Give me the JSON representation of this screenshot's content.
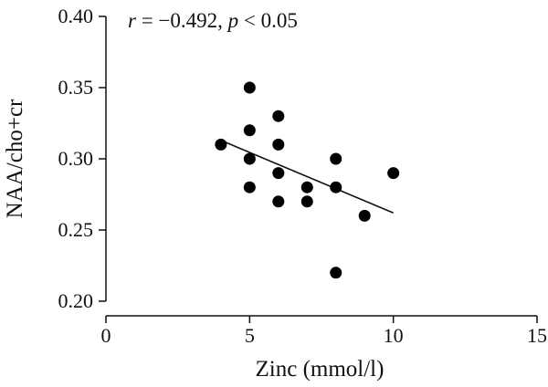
{
  "chart_data": {
    "type": "scatter",
    "xlabel": "Zinc (mmol/l)",
    "ylabel": "NAA/cho+cr",
    "xlim": [
      0,
      15
    ],
    "ylim": [
      0.2,
      0.4
    ],
    "xticks": [
      "0",
      "5",
      "10",
      "15"
    ],
    "yticks": [
      "0.40",
      "0.35",
      "0.30",
      "0.25",
      "0.20"
    ],
    "annotation": {
      "r_symbol": "r",
      "r_value": " = −0.492, ",
      "p_symbol": "p",
      "p_value": " < 0.05"
    },
    "points": [
      {
        "x": 4,
        "y": 0.31
      },
      {
        "x": 5,
        "y": 0.35
      },
      {
        "x": 5,
        "y": 0.32
      },
      {
        "x": 5,
        "y": 0.3
      },
      {
        "x": 5,
        "y": 0.28
      },
      {
        "x": 6,
        "y": 0.33
      },
      {
        "x": 6,
        "y": 0.31
      },
      {
        "x": 6,
        "y": 0.29
      },
      {
        "x": 6,
        "y": 0.27
      },
      {
        "x": 7,
        "y": 0.28
      },
      {
        "x": 7,
        "y": 0.27
      },
      {
        "x": 8,
        "y": 0.3
      },
      {
        "x": 8,
        "y": 0.28
      },
      {
        "x": 8,
        "y": 0.22
      },
      {
        "x": 9,
        "y": 0.26
      },
      {
        "x": 10,
        "y": 0.29
      }
    ],
    "regression": {
      "x": [
        4,
        10
      ],
      "y": [
        0.313,
        0.262
      ]
    },
    "grid": false,
    "legend": "none",
    "marker_color": "#000000"
  }
}
